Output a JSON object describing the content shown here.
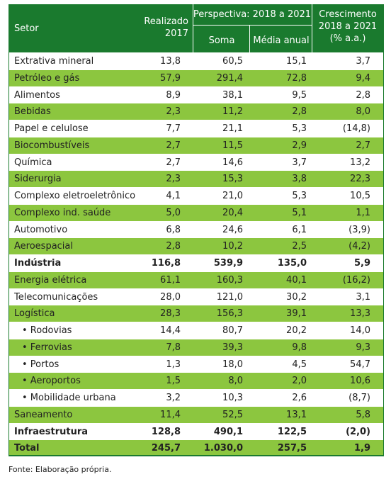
{
  "header": {
    "setor": "Setor",
    "realizado_line1": "Realizado",
    "realizado_line2": "2017",
    "perspectiva": "Perspectiva: 2018 a 2021",
    "soma": "Soma",
    "media": "Média anual",
    "crescimento_line1": "Crescimento",
    "crescimento_line2": "2018 a 2021",
    "crescimento_line3": "(% a.a.)"
  },
  "rows": [
    {
      "setor": "Extrativa mineral",
      "realizado": "13,8",
      "soma": "60,5",
      "media": "15,1",
      "crescimento": "3,7"
    },
    {
      "setor": "Petróleo e gás",
      "realizado": "57,9",
      "soma": "291,4",
      "media": "72,8",
      "crescimento": "9,4"
    },
    {
      "setor": "Alimentos",
      "realizado": "8,9",
      "soma": "38,1",
      "media": "9,5",
      "crescimento": "2,8"
    },
    {
      "setor": "Bebidas",
      "realizado": "2,3",
      "soma": "11,2",
      "media": "2,8",
      "crescimento": "8,0"
    },
    {
      "setor": "Papel e celulose",
      "realizado": "7,7",
      "soma": "21,1",
      "media": "5,3",
      "crescimento": "(14,8)"
    },
    {
      "setor": "Biocombustíveis",
      "realizado": "2,7",
      "soma": "11,5",
      "media": "2,9",
      "crescimento": "2,7"
    },
    {
      "setor": "Química",
      "realizado": "2,7",
      "soma": "14,6",
      "media": "3,7",
      "crescimento": "13,2"
    },
    {
      "setor": "Siderurgia",
      "realizado": "2,3",
      "soma": "15,3",
      "media": "3,8",
      "crescimento": "22,3"
    },
    {
      "setor": "Complexo eletroeletrônico",
      "realizado": "4,1",
      "soma": "21,0",
      "media": "5,3",
      "crescimento": "10,5"
    },
    {
      "setor": "Complexo ind. saúde",
      "realizado": "5,0",
      "soma": "20,4",
      "media": "5,1",
      "crescimento": "1,1"
    },
    {
      "setor": "Automotivo",
      "realizado": "6,8",
      "soma": "24,6",
      "media": "6,1",
      "crescimento": "(3,9)"
    },
    {
      "setor": "Aeroespacial",
      "realizado": "2,8",
      "soma": "10,2",
      "media": "2,5",
      "crescimento": "(4,2)"
    },
    {
      "setor": "Indústria",
      "realizado": "116,8",
      "soma": "539,9",
      "media": "135,0",
      "crescimento": "5,9"
    },
    {
      "setor": "Energia elétrica",
      "realizado": "61,1",
      "soma": "160,3",
      "media": "40,1",
      "crescimento": "(16,2)"
    },
    {
      "setor": "Telecomunicações",
      "realizado": "28,0",
      "soma": "121,0",
      "media": "30,2",
      "crescimento": "3,1"
    },
    {
      "setor": "Logística",
      "realizado": "28,3",
      "soma": "156,3",
      "media": "39,1",
      "crescimento": "13,3"
    },
    {
      "setor": "• Rodovias",
      "realizado": "14,4",
      "soma": "80,7",
      "media": "20,2",
      "crescimento": "14,0"
    },
    {
      "setor": "• Ferrovias",
      "realizado": "7,8",
      "soma": "39,3",
      "media": "9,8",
      "crescimento": "9,3"
    },
    {
      "setor": "• Portos",
      "realizado": "1,3",
      "soma": "18,0",
      "media": "4,5",
      "crescimento": "54,7"
    },
    {
      "setor": "• Aeroportos",
      "realizado": "1,5",
      "soma": "8,0",
      "media": "2,0",
      "crescimento": "10,6"
    },
    {
      "setor": "• Mobilidade urbana",
      "realizado": "3,2",
      "soma": "10,3",
      "media": "2,6",
      "crescimento": "(8,7)"
    },
    {
      "setor": "Saneamento",
      "realizado": "11,4",
      "soma": "52,5",
      "media": "13,1",
      "crescimento": "5,8"
    },
    {
      "setor": "Infraestrutura",
      "realizado": "128,8",
      "soma": "490,1",
      "media": "122,5",
      "crescimento": "(2,0)"
    },
    {
      "setor": "Total",
      "realizado": "245,7",
      "soma": "1.030,0",
      "media": "257,5",
      "crescimento": "1,9"
    }
  ],
  "source": "Fonte: Elaboração própria.",
  "colors": {
    "header": "#1a7a2e",
    "alt_row": "#8cc63f"
  }
}
